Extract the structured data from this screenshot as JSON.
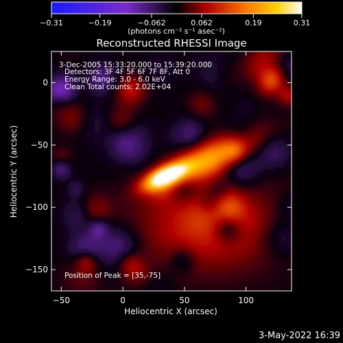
{
  "chart_data": {
    "type": "heatmap",
    "title": "Reconstructed RHESSI Image",
    "xlabel": "Heliocentric X (arcsec)",
    "ylabel": "Heliocentric Y (arcsec)",
    "xlim": [
      -58,
      137
    ],
    "ylim": [
      -167,
      25
    ],
    "x_ticks": [
      -50,
      0,
      50,
      100
    ],
    "x_tick_labels": [
      "−50",
      "0",
      "50",
      "100"
    ],
    "y_ticks": [
      0,
      -50,
      -100,
      -150
    ],
    "y_tick_labels": [
      "0",
      "−50",
      "−100",
      "−150"
    ],
    "colorbar": {
      "min": -0.31,
      "max": 0.31,
      "ticks": [
        -0.31,
        -0.19,
        -0.062,
        0.062,
        0.19,
        0.31
      ],
      "tick_labels": [
        "−0.31",
        "−0.19",
        "−0.062",
        "0.062",
        "0.19",
        "0.31"
      ],
      "unit_label": "(photons cm⁻² s⁻¹ asec⁻²)",
      "colors": [
        "#1a1aff",
        "#7a2cc8",
        "#000000",
        "#b00000",
        "#ff7a00",
        "#ffd000",
        "#ffffff"
      ]
    },
    "peak": {
      "x": 35,
      "y": -75,
      "value": 0.31
    },
    "annotations": [
      "3-Dec-2005 15:33:20.000 to 15:39:20.000",
      "Detectors: 3F 4F 5F 6F 7F 8F, Att 0",
      "Energy Range: 3.0 - 6.0 keV",
      "Clean     Total counts: 2.02E+04",
      "Position of Peak = [35,-75]"
    ]
  },
  "footer": {
    "timestamp": "3-May-2022 16:39"
  }
}
